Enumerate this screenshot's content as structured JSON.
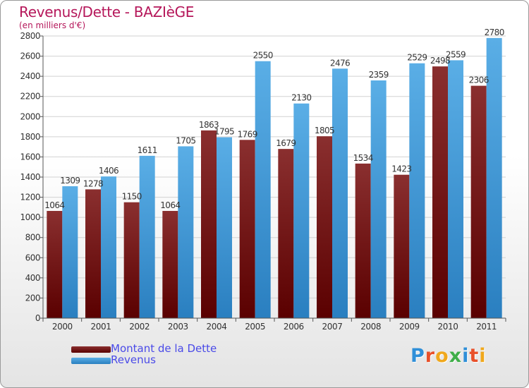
{
  "title": "Revenus/Dette - BAZIèGE",
  "subtitle": "(en milliers d'€)",
  "logo": {
    "text": "Proxiti",
    "letters": [
      {
        "ch": "P",
        "color": "#2f8fd8"
      },
      {
        "ch": "r",
        "color": "#e8502a"
      },
      {
        "ch": "o",
        "color": "#f0a81c"
      },
      {
        "ch": "x",
        "color": "#3fae49"
      },
      {
        "ch": "i",
        "color": "#2f8fd8"
      },
      {
        "ch": "t",
        "color": "#e8502a"
      },
      {
        "ch": "i",
        "color": "#f0a81c"
      }
    ]
  },
  "colors": {
    "dette_top": "#8a2f2f",
    "dette_bottom": "#5a0000",
    "revenus_top": "#5aaee6",
    "revenus_bottom": "#2a7fc0",
    "grid": "#d2d2d2",
    "axis": "#555555",
    "tick_text": "#333333"
  },
  "chart_data": {
    "type": "bar",
    "categories": [
      "2000",
      "2001",
      "2002",
      "2003",
      "2004",
      "2005",
      "2006",
      "2007",
      "2008",
      "2009",
      "2010",
      "2011"
    ],
    "series": [
      {
        "name": "Montant de la Dette",
        "values": [
          1064,
          1278,
          1150,
          1064,
          1863,
          1769,
          1679,
          1805,
          1534,
          1423,
          2498,
          2306
        ]
      },
      {
        "name": "Revenus",
        "values": [
          1309,
          1406,
          1611,
          1705,
          1795,
          2550,
          2130,
          2476,
          2359,
          2529,
          2559,
          2780
        ]
      }
    ],
    "ylim": [
      0,
      2800
    ],
    "yticks": [
      0,
      200,
      400,
      600,
      800,
      1000,
      1200,
      1400,
      1600,
      1800,
      2000,
      2200,
      2400,
      2600,
      2800
    ],
    "grid": true,
    "legend_position": "bottom-left"
  }
}
